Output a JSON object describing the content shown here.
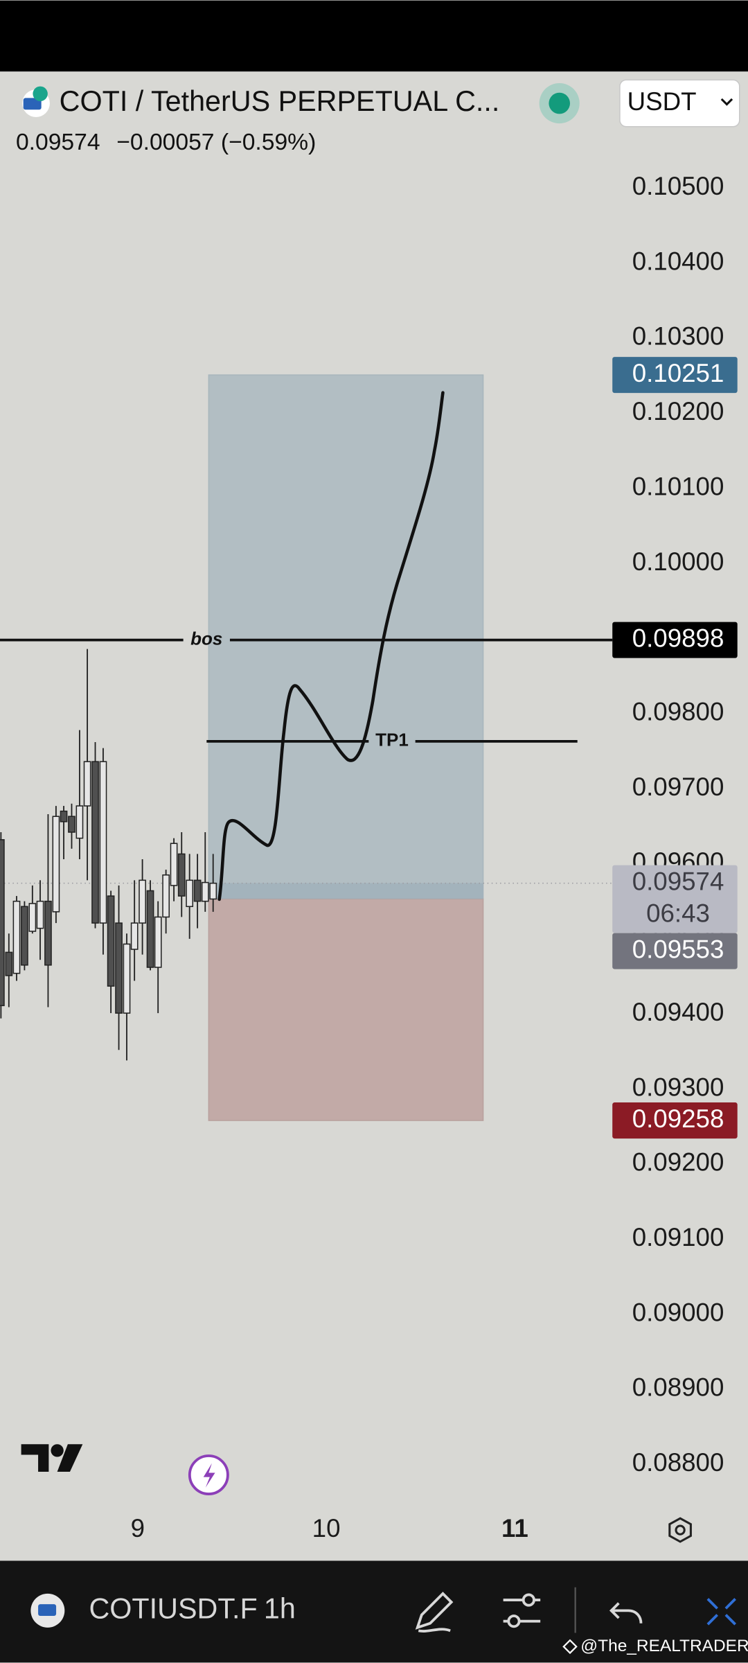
{
  "header": {
    "symbol": "COTI / TetherUS PERPETUAL C...",
    "currency": "USDT",
    "last": "0.09574",
    "change": "−0.00057 (−0.59%)"
  },
  "chart_data": {
    "type": "candlestick",
    "x": [
      8.275,
      8.317,
      8.358,
      8.4,
      8.442,
      8.483,
      8.525,
      8.567,
      8.608,
      8.65,
      8.692,
      8.733,
      8.775,
      8.817,
      8.858,
      8.9,
      8.942,
      8.983,
      9.025,
      9.067,
      9.108,
      9.15,
      9.192,
      9.233,
      9.275,
      9.317,
      9.358,
      9.4
    ],
    "open": [
      0.09632,
      0.09482,
      0.09454,
      0.09543,
      0.0951,
      0.09514,
      0.0955,
      0.09536,
      0.0967,
      0.09663,
      0.09634,
      0.09677,
      0.09736,
      0.09521,
      0.09557,
      0.09521,
      0.09401,
      0.09486,
      0.09521,
      0.09564,
      0.09462,
      0.09529,
      0.09571,
      0.09613,
      0.09543,
      0.09578,
      0.0955,
      0.09553
    ],
    "high": [
      0.09642,
      0.09507,
      0.09557,
      0.0955,
      0.09571,
      0.09578,
      0.09666,
      0.09677,
      0.09677,
      0.0968,
      0.09778,
      0.09886,
      0.09762,
      0.09754,
      0.09564,
      0.09571,
      0.09507,
      0.09578,
      0.09606,
      0.09578,
      0.0955,
      0.09592,
      0.09634,
      0.09642,
      0.09613,
      0.09613,
      0.09642,
      0.09613
    ],
    "low": [
      0.09394,
      0.09409,
      0.09444,
      0.09458,
      0.09507,
      0.09472,
      0.09409,
      0.09521,
      0.09606,
      0.0962,
      0.09606,
      0.09578,
      0.09514,
      0.09479,
      0.09401,
      0.09352,
      0.09338,
      0.09444,
      0.09479,
      0.09458,
      0.09401,
      0.09507,
      0.0955,
      0.09529,
      0.095,
      0.09514,
      0.09536,
      0.09536
    ],
    "close": [
      0.09411,
      0.09451,
      0.0955,
      0.09465,
      0.09547,
      0.0955,
      0.09465,
      0.09663,
      0.09656,
      0.09642,
      0.09677,
      0.09736,
      0.09521,
      0.09736,
      0.09437,
      0.09401,
      0.09493,
      0.09521,
      0.09578,
      0.09462,
      0.09529,
      0.09585,
      0.09627,
      0.09557,
      0.09578,
      0.0955,
      0.09575,
      0.09574
    ],
    "up_color": "#e6e6e6",
    "down_color": "#505050",
    "xlim": [
      8.27,
      11.517
    ],
    "xticks": [
      9,
      10,
      11
    ],
    "ylim": [
      0.08745,
      0.10538
    ],
    "yticks": [
      {
        "value": 0.105,
        "label": "0.10500"
      },
      {
        "value": 0.104,
        "label": "0.10400"
      },
      {
        "value": 0.103,
        "label": "0.10300"
      },
      {
        "value": 0.102,
        "label": "0.10200"
      },
      {
        "value": 0.101,
        "label": "0.10100"
      },
      {
        "value": 0.1,
        "label": "0.10000"
      },
      {
        "value": 0.099,
        "label": "0.09900"
      },
      {
        "value": 0.098,
        "label": "0.09800"
      },
      {
        "value": 0.097,
        "label": "0.09700"
      },
      {
        "value": 0.096,
        "label": "0.09600"
      },
      {
        "value": 0.095,
        "label": "0.09500"
      },
      {
        "value": 0.094,
        "label": "0.09400"
      },
      {
        "value": 0.093,
        "label": "0.09300"
      },
      {
        "value": 0.092,
        "label": "0.09200"
      },
      {
        "value": 0.091,
        "label": "0.09100"
      },
      {
        "value": 0.09,
        "label": "0.09000"
      },
      {
        "value": 0.089,
        "label": "0.08900"
      },
      {
        "value": 0.088,
        "label": "0.08800"
      }
    ],
    "lines": [
      {
        "name": "bos",
        "value": 0.09898
      },
      {
        "name": "TP1",
        "value": 0.09763
      }
    ],
    "position": {
      "target": 0.10251,
      "entry": 0.09553,
      "stop": 0.09258,
      "profit_color": "#b2bec3",
      "loss_color": "#c2aaa7"
    },
    "price_labels": [
      {
        "value": 0.10251,
        "color": "#3a6d8f",
        "text_color": "#ffffff"
      },
      {
        "value": 0.09898,
        "color": "#000000",
        "text_color": "#ffffff"
      },
      {
        "value": 0.09574,
        "color": "#b9bac4",
        "text_color": "#3c3c44",
        "countdown": "06:43"
      },
      {
        "value": 0.09553,
        "color": "#73747e",
        "text_color": "#ffffff"
      },
      {
        "value": 0.09258,
        "color": "#8b1b25",
        "text_color": "#ffffff"
      }
    ]
  },
  "toolbar": {
    "symbol": "COTIUSDT.F",
    "interval": "1h",
    "watermark": "@The_REALTRADER"
  }
}
